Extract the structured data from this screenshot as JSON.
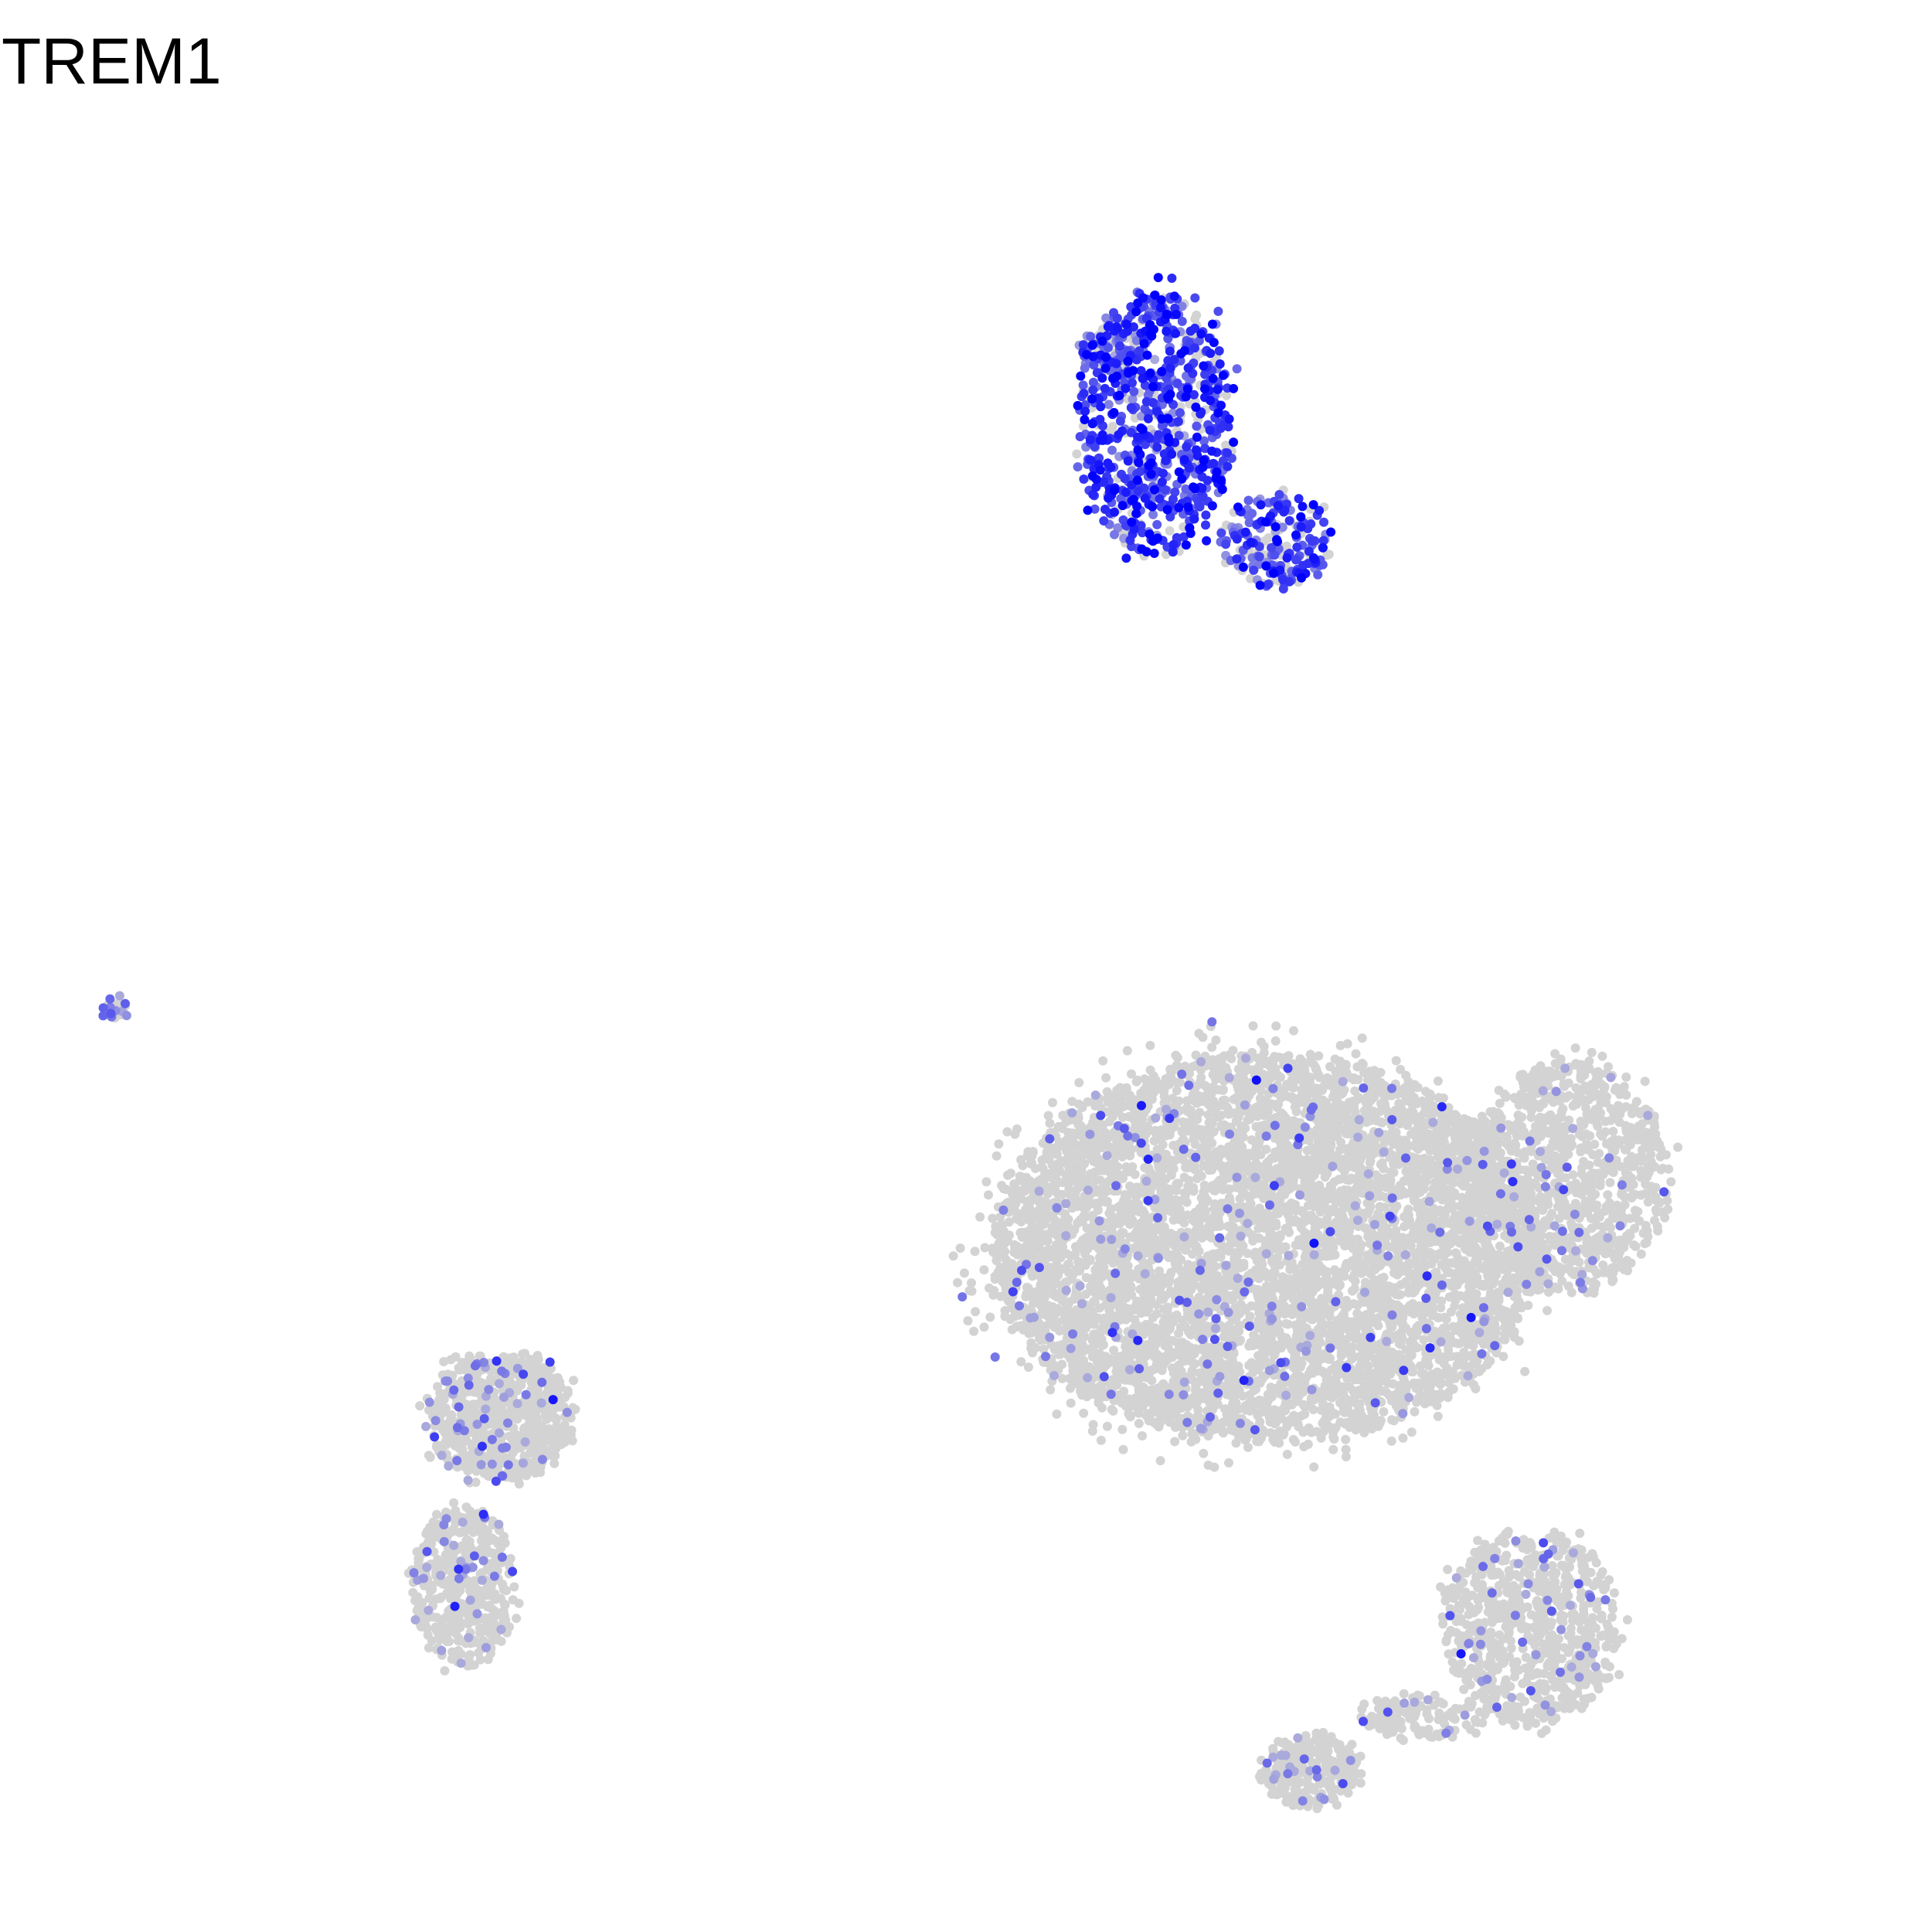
{
  "chart_data": {
    "type": "scatter",
    "title": "TREM1",
    "xlabel": "",
    "ylabel": "",
    "axes_visible": false,
    "grid": false,
    "legend": "none",
    "xlim": [
      0,
      100
    ],
    "ylim": [
      0,
      100
    ],
    "color_scale": {
      "low": "#d3d3d3",
      "high": "#0000ff"
    },
    "clusters": [
      {
        "name": "",
        "cx": 60.0,
        "cy": 82.5,
        "rx": 4.2,
        "ry": 7.5,
        "n": 780,
        "expr_prob": 0.82,
        "expr_mean": 0.72
      },
      {
        "name": "",
        "cx": 57.5,
        "cy": 86.8,
        "rx": 1.6,
        "ry": 1.2,
        "n": 110,
        "expr_prob": 0.55,
        "expr_mean": 0.45
      },
      {
        "name": "",
        "cx": 66.5,
        "cy": 76.0,
        "rx": 3.0,
        "ry": 2.6,
        "n": 220,
        "expr_prob": 0.75,
        "expr_mean": 0.65
      },
      {
        "name": "",
        "cx": 66.0,
        "cy": 36.0,
        "rx": 15.0,
        "ry": 11.0,
        "n": 6200,
        "expr_prob": 0.035,
        "expr_mean": 0.35
      },
      {
        "name": "",
        "cx": 82.5,
        "cy": 40.0,
        "rx": 5.5,
        "ry": 6.5,
        "n": 1000,
        "expr_prob": 0.05,
        "expr_mean": 0.3
      },
      {
        "name": "",
        "cx": 80.5,
        "cy": 14.5,
        "rx": 4.8,
        "ry": 5.5,
        "n": 750,
        "expr_prob": 0.06,
        "expr_mean": 0.3
      },
      {
        "name": "",
        "cx": 68.5,
        "cy": 6.5,
        "rx": 2.6,
        "ry": 2.0,
        "n": 260,
        "expr_prob": 0.07,
        "expr_mean": 0.3
      },
      {
        "name": "",
        "cx": 74.5,
        "cy": 9.5,
        "rx": 3.5,
        "ry": 1.2,
        "n": 120,
        "expr_prob": 0.05,
        "expr_mean": 0.3
      },
      {
        "name": "",
        "cx": 24.0,
        "cy": 26.5,
        "rx": 4.0,
        "ry": 3.6,
        "n": 700,
        "expr_prob": 0.09,
        "expr_mean": 0.35
      },
      {
        "name": "",
        "cx": 22.0,
        "cy": 17.0,
        "rx": 2.8,
        "ry": 4.5,
        "n": 450,
        "expr_prob": 0.09,
        "expr_mean": 0.35
      },
      {
        "name": "",
        "cx": 3.0,
        "cy": 49.5,
        "rx": 0.6,
        "ry": 0.6,
        "n": 25,
        "expr_prob": 0.25,
        "expr_mean": 0.35
      }
    ]
  }
}
